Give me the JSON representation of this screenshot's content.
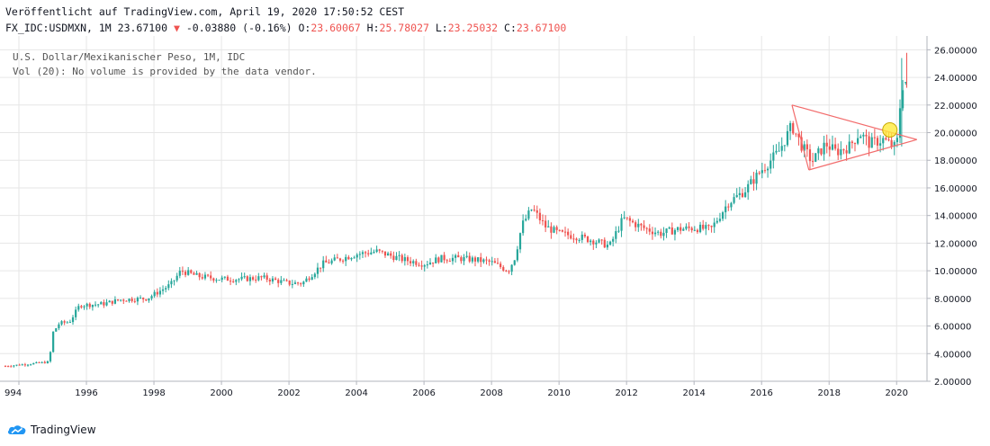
{
  "header": {
    "published_line": "Veröffentlicht auf TradingView.com, April 19, 2020 17:50:52 CEST",
    "symbol": "FX_IDC:USDMXN, 1M",
    "last": "23.67100",
    "arrow": "▼",
    "change": "-0.03880 (-0.16%)",
    "o_label": "O:",
    "o_value": "23.60067",
    "h_label": "H:",
    "h_value": "25.78027",
    "l_label": "L:",
    "l_value": "23.25032",
    "c_label": "C:",
    "c_value": "23.67100"
  },
  "legend": {
    "line1": "U.S. Dollar/Mexikanischer Peso, 1M, IDC",
    "line2": "Vol (20): No volume is provided by the data vendor."
  },
  "brand": {
    "name": "TradingView"
  },
  "colors": {
    "up": "#26a69a",
    "down": "#ef5350",
    "grid": "#e6e6e6",
    "trend": "#f26c6c",
    "marker_fill": "#ffeb3b",
    "marker_stroke": "#c8a800"
  },
  "chart_data": {
    "type": "candlestick",
    "x_ticks": [
      "994",
      "1996",
      "1998",
      "2000",
      "2002",
      "2004",
      "2006",
      "2008",
      "2010",
      "2012",
      "2014",
      "2016",
      "2018",
      "2020"
    ],
    "y_ticks": [
      "2.00000",
      "4.00000",
      "6.00000",
      "8.00000",
      "10.00000",
      "12.00000",
      "14.00000",
      "16.00000",
      "18.00000",
      "20.00000",
      "22.00000",
      "24.00000",
      "26.00000"
    ],
    "ylim": [
      2,
      27
    ],
    "xlim": [
      1993.6,
      2020.9
    ],
    "anchors": [
      [
        1993.6,
        3.1
      ],
      [
        1994.5,
        3.3
      ],
      [
        1994.9,
        3.4
      ],
      [
        1995.0,
        5.5
      ],
      [
        1995.2,
        6.2
      ],
      [
        1995.5,
        6.3
      ],
      [
        1995.8,
        7.5
      ],
      [
        1996.5,
        7.6
      ],
      [
        1997.0,
        7.9
      ],
      [
        1997.8,
        8.0
      ],
      [
        1998.5,
        9.0
      ],
      [
        1998.8,
        10.0
      ],
      [
        1999.3,
        9.6
      ],
      [
        2000.0,
        9.4
      ],
      [
        2000.6,
        9.4
      ],
      [
        2001.2,
        9.5
      ],
      [
        2002.0,
        9.1
      ],
      [
        2002.4,
        9.1
      ],
      [
        2003.0,
        10.5
      ],
      [
        2004.0,
        11.2
      ],
      [
        2004.6,
        11.4
      ],
      [
        2005.4,
        10.8
      ],
      [
        2006.0,
        10.5
      ],
      [
        2006.5,
        10.9
      ],
      [
        2007.0,
        10.9
      ],
      [
        2007.5,
        10.8
      ],
      [
        2008.0,
        10.6
      ],
      [
        2008.5,
        10.0
      ],
      [
        2008.7,
        11.0
      ],
      [
        2008.9,
        13.3
      ],
      [
        2009.2,
        14.5
      ],
      [
        2009.6,
        13.2
      ],
      [
        2010.0,
        12.7
      ],
      [
        2010.5,
        12.5
      ],
      [
        2011.0,
        12.2
      ],
      [
        2011.5,
        11.8
      ],
      [
        2011.9,
        13.8
      ],
      [
        2012.5,
        13.1
      ],
      [
        2013.0,
        12.7
      ],
      [
        2013.5,
        13.0
      ],
      [
        2014.0,
        13.1
      ],
      [
        2014.5,
        13.0
      ],
      [
        2015.0,
        14.9
      ],
      [
        2015.5,
        15.8
      ],
      [
        2016.0,
        17.3
      ],
      [
        2016.5,
        18.6
      ],
      [
        2016.9,
        20.5
      ],
      [
        2017.2,
        19.0
      ],
      [
        2017.5,
        17.9
      ],
      [
        2017.9,
        19.2
      ],
      [
        2018.2,
        18.6
      ],
      [
        2018.6,
        19.0
      ],
      [
        2018.9,
        20.0
      ],
      [
        2019.2,
        19.2
      ],
      [
        2019.6,
        19.5
      ],
      [
        2019.9,
        19.0
      ],
      [
        2020.0,
        18.9
      ],
      [
        2020.15,
        23.4
      ],
      [
        2020.3,
        23.67
      ]
    ],
    "triangle": {
      "upper": [
        [
          2016.9,
          22.0
        ],
        [
          2020.6,
          19.5
        ]
      ],
      "lower": [
        [
          2017.4,
          17.3
        ],
        [
          2020.6,
          19.5
        ]
      ]
    },
    "marker": {
      "x": 2019.8,
      "y": 20.2
    }
  }
}
